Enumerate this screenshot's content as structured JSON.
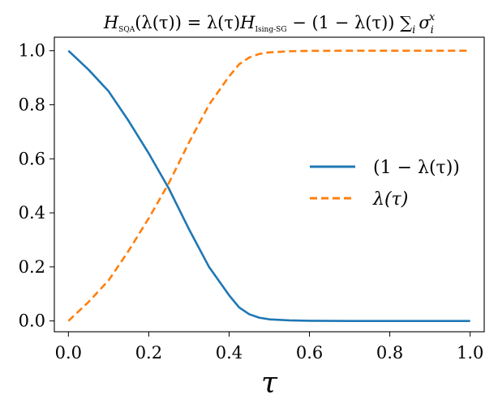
{
  "chart_data": {
    "type": "line",
    "title": "H_SQA(λ(τ)) = λ(τ)H_Ising-SG − (1 − λ(τ)) ∑_i σ_i^x",
    "title_parts": {
      "H": "H",
      "sub_sqa": "SQA",
      "lhs_arg": "(λ(τ)) = λ(τ)",
      "H2": "H",
      "sub_ising": "Ising-SG",
      "rhs": " − (1 − λ(τ)) ∑",
      "sum_index": "i",
      "sigma": "σ",
      "sigma_sub": "i",
      "sigma_sup": "x"
    },
    "xlabel": "τ",
    "ylabel": "",
    "xlim": [
      -0.035,
      1.035
    ],
    "ylim": [
      -0.04,
      1.05
    ],
    "xticks": [
      0.0,
      0.2,
      0.4,
      0.6,
      0.8,
      1.0
    ],
    "xtick_labels": [
      "0.0",
      "0.2",
      "0.4",
      "0.6",
      "0.8",
      "1.0"
    ],
    "yticks": [
      0.0,
      0.2,
      0.4,
      0.6,
      0.8,
      1.0
    ],
    "ytick_labels": [
      "0.0",
      "0.2",
      "0.4",
      "0.6",
      "0.8",
      "1.0"
    ],
    "grid": false,
    "legend_position": "center-right",
    "x": [
      0.0,
      0.05,
      0.1,
      0.15,
      0.2,
      0.25,
      0.3,
      0.35,
      0.4,
      0.425,
      0.45,
      0.475,
      0.5,
      0.55,
      0.6,
      0.7,
      0.8,
      0.9,
      1.0
    ],
    "series": [
      {
        "name": "(1 − λ(τ))",
        "color": "#1f77b4",
        "style": "solid",
        "values": [
          1.0,
          0.93,
          0.85,
          0.74,
          0.62,
          0.49,
          0.34,
          0.2,
          0.095,
          0.05,
          0.025,
          0.012,
          0.006,
          0.002,
          0.0005,
          0.0,
          0.0,
          0.0,
          0.0
        ]
      },
      {
        "name": "λ(τ)",
        "color": "#ff7f0e",
        "style": "dashed",
        "values": [
          0.0,
          0.07,
          0.15,
          0.26,
          0.38,
          0.51,
          0.66,
          0.8,
          0.905,
          0.95,
          0.975,
          0.988,
          0.994,
          0.998,
          0.9995,
          1.0,
          1.0,
          1.0,
          1.0
        ]
      }
    ]
  }
}
